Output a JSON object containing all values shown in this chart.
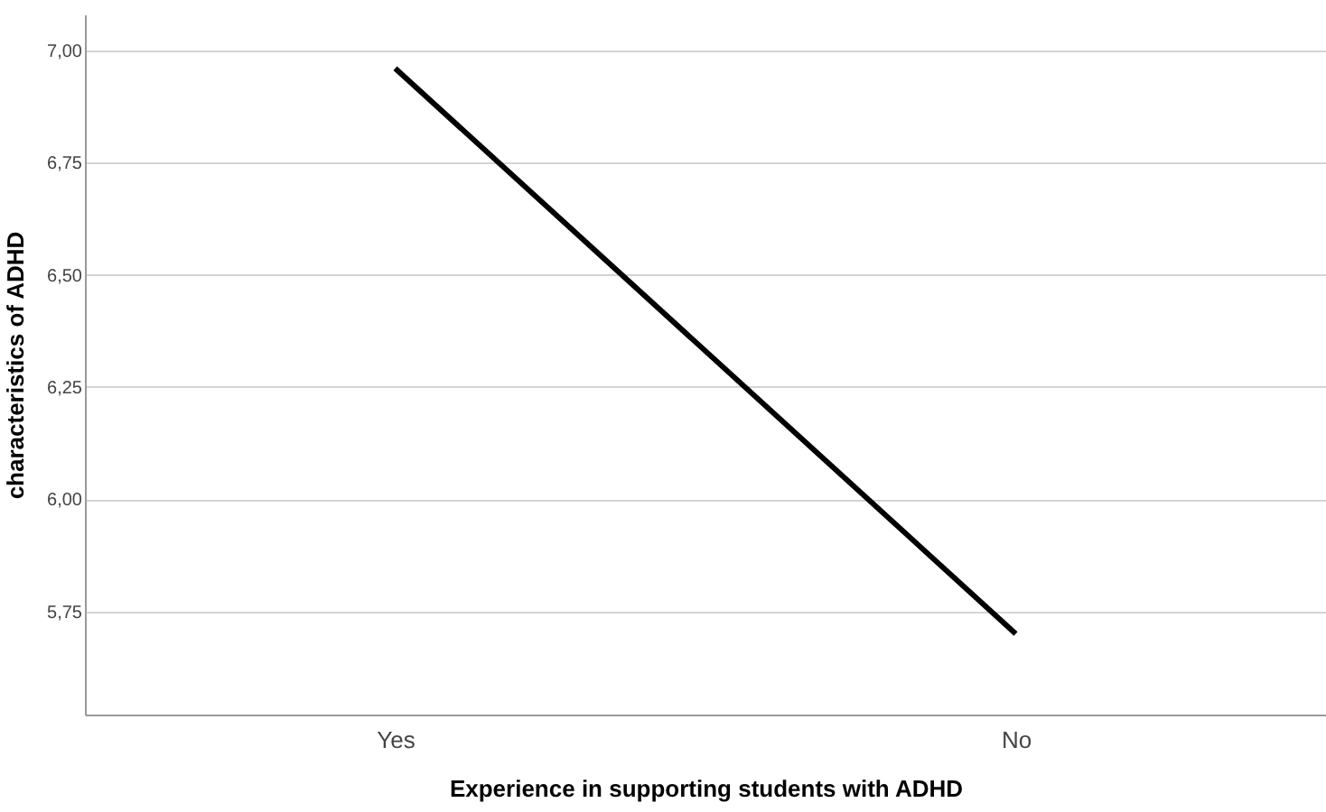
{
  "chart_data": {
    "type": "line",
    "xlabel": "Experience in supporting students with ADHD",
    "ylabel": "characteristics of ADHD",
    "categories": [
      "Yes",
      "No"
    ],
    "series": [
      {
        "color": "#000000",
        "values": [
          6.96,
          5.7
        ]
      }
    ],
    "ylim": [
      5.52,
      7.08
    ],
    "yticks": [
      {
        "value": 5.75,
        "label": "5,75"
      },
      {
        "value": 6.0,
        "label": "6,00"
      },
      {
        "value": 6.25,
        "label": "6,25"
      },
      {
        "value": 6.5,
        "label": "6,50"
      },
      {
        "value": 6.75,
        "label": "6,75"
      },
      {
        "value": 7.0,
        "label": "7,00"
      }
    ],
    "grid": "y",
    "marker": "none",
    "line_style": "solid"
  }
}
